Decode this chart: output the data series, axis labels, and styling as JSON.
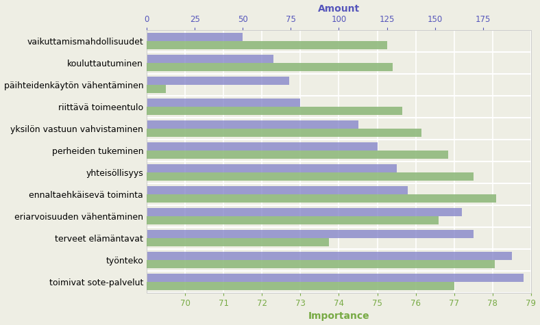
{
  "categories": [
    "toimivat sote-palvelut",
    "työnteko",
    "terveet elämäntavat",
    "eriarvoisuuden vähentäminen",
    "ennaltaehkäisevä toiminta",
    "yhteisöllisyys",
    "perheiden tukeminen",
    "yksilön vastuun vahvistaminen",
    "riittävä toimeentulo",
    "päihteidenkäytön vähentäminen",
    "kouluttautuminen",
    "vaikuttamismahdollisuudet"
  ],
  "amount_values": [
    160,
    181,
    95,
    152,
    182,
    170,
    157,
    143,
    133,
    10,
    128,
    125
  ],
  "importance_values": [
    78.8,
    78.5,
    77.5,
    77.2,
    75.8,
    75.5,
    75.0,
    74.5,
    73.0,
    72.7,
    72.3,
    71.5
  ],
  "amount_color": "#8db87a",
  "importance_color": "#8080c8",
  "background_color": "#eeeee4",
  "amount_label": "Amount",
  "importance_label": "Importance",
  "amount_xlim": [
    0,
    200
  ],
  "importance_xlim": [
    69,
    79
  ],
  "amount_xticks": [
    0,
    25,
    50,
    75,
    100,
    125,
    150,
    175
  ],
  "importance_xticks": [
    70,
    71,
    72,
    73,
    74,
    75,
    76,
    77,
    78,
    79
  ],
  "amount_label_color": "#5555bb",
  "importance_label_color": "#77aa44",
  "bar_height": 0.38,
  "figsize": [
    7.88,
    4.75
  ],
  "dpi": 100
}
